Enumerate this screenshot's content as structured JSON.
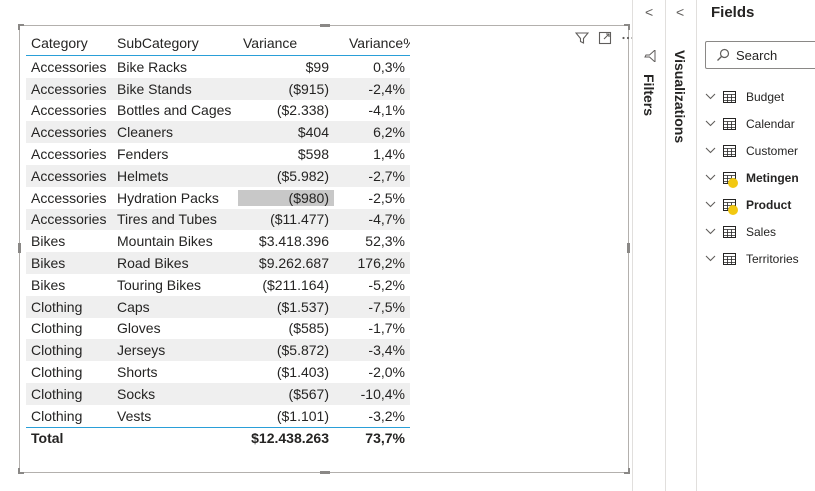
{
  "visual": {
    "headers": [
      "Category",
      "SubCategory",
      "Variance",
      "Variance%"
    ],
    "rows": [
      [
        "Accessories",
        "Bike Racks",
        "$99",
        "0,3%"
      ],
      [
        "Accessories",
        "Bike Stands",
        "($915)",
        "-2,4%"
      ],
      [
        "Accessories",
        "Bottles and Cages",
        "($2.338)",
        "-4,1%"
      ],
      [
        "Accessories",
        "Cleaners",
        "$404",
        "6,2%"
      ],
      [
        "Accessories",
        "Fenders",
        "$598",
        "1,4%"
      ],
      [
        "Accessories",
        "Helmets",
        "($5.982)",
        "-2,7%"
      ],
      [
        "Accessories",
        "Hydration Packs",
        "($980)",
        "-2,5%"
      ],
      [
        "Accessories",
        "Tires and Tubes",
        "($11.477)",
        "-4,7%"
      ],
      [
        "Bikes",
        "Mountain Bikes",
        "$3.418.396",
        "52,3%"
      ],
      [
        "Bikes",
        "Road Bikes",
        "$9.262.687",
        "176,2%"
      ],
      [
        "Bikes",
        "Touring Bikes",
        "($211.164)",
        "-5,2%"
      ],
      [
        "Clothing",
        "Caps",
        "($1.537)",
        "-7,5%"
      ],
      [
        "Clothing",
        "Gloves",
        "($585)",
        "-1,7%"
      ],
      [
        "Clothing",
        "Jerseys",
        "($5.872)",
        "-3,4%"
      ],
      [
        "Clothing",
        "Shorts",
        "($1.403)",
        "-2,0%"
      ],
      [
        "Clothing",
        "Socks",
        "($567)",
        "-10,4%"
      ],
      [
        "Clothing",
        "Vests",
        "($1.101)",
        "-3,2%"
      ]
    ],
    "total": [
      "Total",
      "",
      "$12.438.263",
      "73,7%"
    ]
  },
  "panes": {
    "filters_label": "Filters",
    "visualizations_label": "Visualizations",
    "collapse_glyph": "<"
  },
  "fields": {
    "title": "Fields",
    "search_placeholder": "Search",
    "tables": [
      {
        "name": "Budget",
        "bold": false,
        "badge": false
      },
      {
        "name": "Calendar",
        "bold": false,
        "badge": false
      },
      {
        "name": "Customer",
        "bold": false,
        "badge": false
      },
      {
        "name": "Metingen",
        "bold": true,
        "badge": true
      },
      {
        "name": "Product",
        "bold": true,
        "badge": true
      },
      {
        "name": "Sales",
        "bold": false,
        "badge": false
      },
      {
        "name": "Territories",
        "bold": false,
        "badge": false
      }
    ]
  },
  "colors": {
    "accent_line": "#2a9fd8",
    "badge": "#f2c811",
    "highlight_cell": "#c8c8c8"
  }
}
